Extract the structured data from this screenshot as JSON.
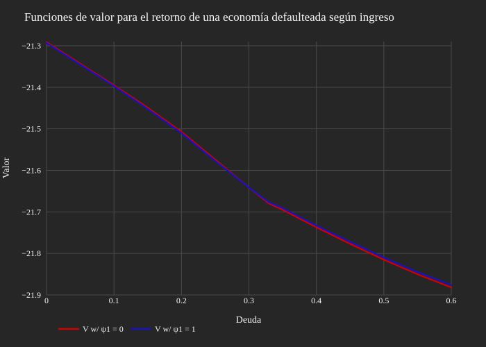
{
  "chart_data": {
    "type": "line",
    "title": "Funciones de valor para el retorno de una economía defaulteada según ingreso",
    "xlabel": "Deuda",
    "ylabel": "Valor",
    "xlim": [
      0,
      0.6
    ],
    "ylim": [
      -21.9,
      -21.29
    ],
    "x_ticks": [
      "0",
      "0.1",
      "0.2",
      "0.3",
      "0.4",
      "0.5",
      "0.6"
    ],
    "x_tick_values": [
      0,
      0.1,
      0.2,
      0.3,
      0.4,
      0.5,
      0.6
    ],
    "y_ticks": [
      "−21.3",
      "−21.4",
      "−21.5",
      "−21.6",
      "−21.7",
      "−21.8",
      "−21.9"
    ],
    "y_tick_values": [
      -21.3,
      -21.4,
      -21.5,
      -21.6,
      -21.7,
      -21.8,
      -21.9
    ],
    "grid": true,
    "legend_position": "bottom-left",
    "series": [
      {
        "name": "V w/ ψ1 = 0",
        "color": "#d40000",
        "x": [
          0,
          0.05,
          0.1,
          0.15,
          0.2,
          0.25,
          0.3,
          0.33,
          0.35,
          0.4,
          0.45,
          0.5,
          0.55,
          0.6
        ],
        "y": [
          -21.291,
          -21.343,
          -21.395,
          -21.449,
          -21.507,
          -21.574,
          -21.641,
          -21.68,
          -21.695,
          -21.737,
          -21.777,
          -21.815,
          -21.85,
          -21.882
        ]
      },
      {
        "name": "V w/ ψ1 = 1",
        "color": "#1a10c8",
        "x": [
          0,
          0.05,
          0.1,
          0.15,
          0.2,
          0.25,
          0.3,
          0.33,
          0.35,
          0.4,
          0.45,
          0.5,
          0.55,
          0.6
        ],
        "y": [
          -21.293,
          -21.345,
          -21.397,
          -21.452,
          -21.51,
          -21.577,
          -21.641,
          -21.677,
          -21.691,
          -21.733,
          -21.772,
          -21.81,
          -21.845,
          -21.876
        ]
      }
    ]
  }
}
